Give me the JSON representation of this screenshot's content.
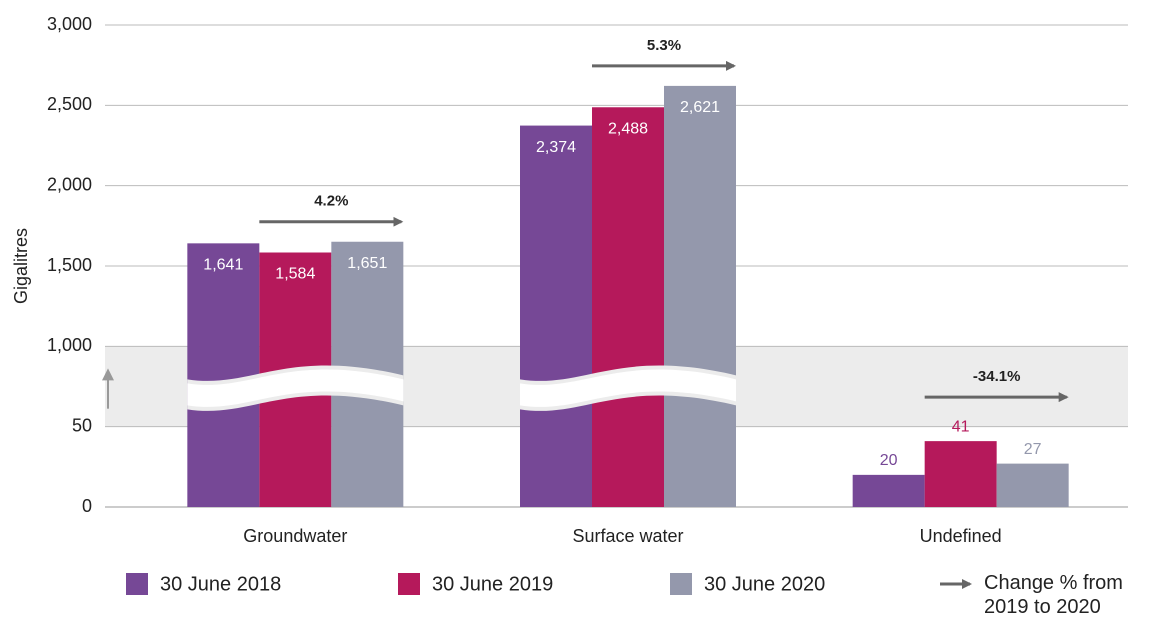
{
  "chart_data": {
    "type": "bar",
    "y_label": "Gigalitres",
    "categories": [
      "Groundwater",
      "Surface water",
      "Undefined"
    ],
    "series": [
      {
        "name": "30 June 2018",
        "color": "#764896",
        "values": [
          1641,
          2374,
          20
        ],
        "value_labels": [
          "1,641",
          "2,374",
          "20"
        ]
      },
      {
        "name": "30 June 2019",
        "color": "#b5195b",
        "values": [
          1584,
          2488,
          41
        ],
        "value_labels": [
          "1,584",
          "2,488",
          "41"
        ]
      },
      {
        "name": "30 June 2020",
        "color": "#9498ac",
        "values": [
          1651,
          2621,
          27
        ],
        "value_labels": [
          "1,651",
          "2,621",
          "27"
        ]
      }
    ],
    "annotations": [
      "4.2%",
      "5.3%",
      "-34.1%"
    ],
    "arrow_legend": "Change % from 2019 to 2020",
    "ylim": [
      0,
      3000
    ],
    "axis_break": [
      50,
      1000
    ],
    "yticks": [
      0,
      50,
      {
        "value": 1000,
        "label": "1,000"
      },
      {
        "value": 1500,
        "label": "1,500"
      },
      {
        "value": 2000,
        "label": "2,000"
      },
      {
        "value": 2500,
        "label": "2,500"
      },
      {
        "value": 3000,
        "label": "3,000"
      }
    ],
    "grid": true
  }
}
